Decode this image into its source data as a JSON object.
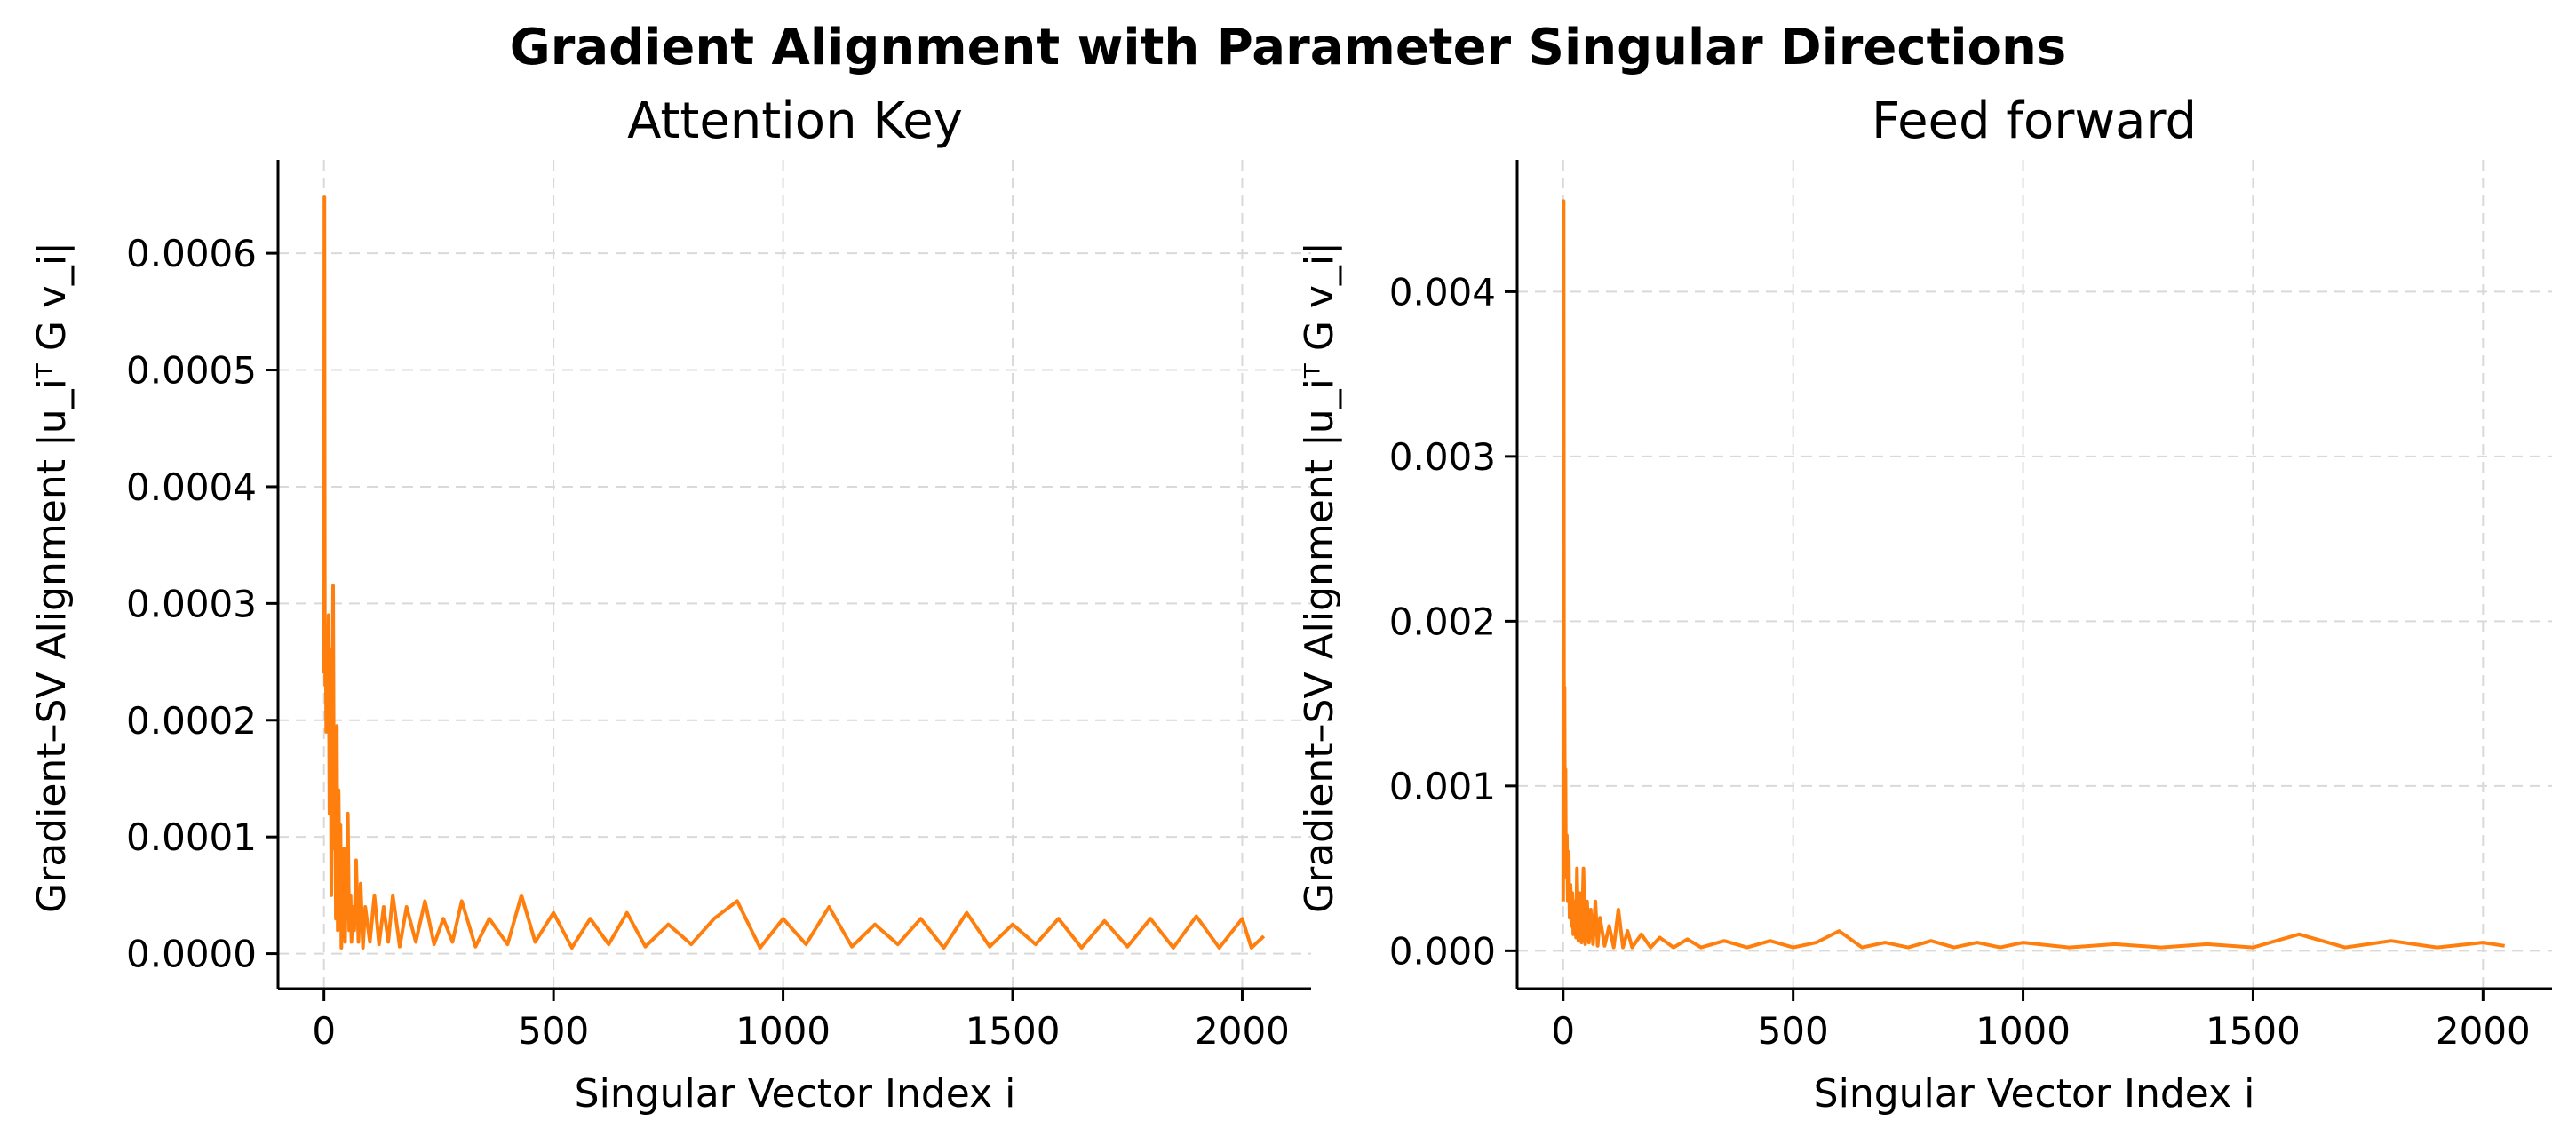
{
  "figure": {
    "title": "Gradient Alignment with Parameter Singular Directions",
    "series_color": "#ff7f0e"
  },
  "chart_data": [
    {
      "type": "line",
      "title": "Attention Key",
      "xlabel": "Singular Vector Index  i",
      "ylabel": "Gradient–SV Alignment  |u_iᵀ G v_i|",
      "xlim": [
        -100,
        2150
      ],
      "ylim": [
        -3e-05,
        0.00068
      ],
      "xticks": [
        0,
        500,
        1000,
        1500,
        2000
      ],
      "xtick_labels": [
        "0",
        "500",
        "1000",
        "1500",
        "2000"
      ],
      "yticks": [
        0,
        0.0001,
        0.0002,
        0.0003,
        0.0004,
        0.0005,
        0.0006
      ],
      "ytick_labels": [
        "0.0000",
        "0.0001",
        "0.0002",
        "0.0003",
        "0.0004",
        "0.0005",
        "0.0006"
      ],
      "grid": true,
      "series": [
        {
          "name": "",
          "x": [
            0,
            1,
            2,
            3,
            4,
            5,
            6,
            8,
            10,
            12,
            14,
            16,
            18,
            20,
            22,
            24,
            26,
            28,
            30,
            32,
            34,
            36,
            38,
            40,
            42,
            44,
            46,
            48,
            50,
            52,
            55,
            58,
            60,
            63,
            66,
            70,
            75,
            80,
            85,
            90,
            100,
            110,
            120,
            130,
            140,
            150,
            165,
            180,
            200,
            220,
            240,
            260,
            280,
            300,
            330,
            360,
            400,
            430,
            460,
            500,
            540,
            580,
            620,
            660,
            700,
            750,
            800,
            850,
            900,
            950,
            1000,
            1050,
            1100,
            1150,
            1200,
            1250,
            1300,
            1350,
            1400,
            1450,
            1500,
            1550,
            1600,
            1650,
            1700,
            1750,
            1800,
            1850,
            1900,
            1950,
            2000,
            2020,
            2047
          ],
          "values": [
            0.00024,
            0.000648,
            0.00028,
            0.00023,
            0.000255,
            0.00019,
            0.00028,
            0.00022,
            0.00029,
            0.00012,
            0.00026,
            5e-05,
            0.0002,
            0.000315,
            9e-05,
            0.00018,
            3e-05,
            0.000195,
            2e-05,
            0.00014,
            6e-05,
            0.00011,
            5e-06,
            7e-05,
            4e-05,
            9e-05,
            1e-05,
            6e-05,
            3e-05,
            0.00012,
            2e-05,
            5e-05,
            1e-05,
            4e-05,
            2e-05,
            8e-05,
            1e-05,
            6e-05,
            5e-06,
            4e-05,
            1e-05,
            5e-05,
            8e-06,
            4e-05,
            1e-05,
            5e-05,
            6e-06,
            4e-05,
            1e-05,
            4.5e-05,
            8e-06,
            3e-05,
            1e-05,
            4.5e-05,
            6e-06,
            3e-05,
            8e-06,
            5e-05,
            1e-05,
            3.5e-05,
            5e-06,
            3e-05,
            8e-06,
            3.5e-05,
            6e-06,
            2.5e-05,
            8e-06,
            3e-05,
            4.5e-05,
            5e-06,
            3e-05,
            8e-06,
            4e-05,
            6e-06,
            2.5e-05,
            8e-06,
            3e-05,
            5e-06,
            3.5e-05,
            6e-06,
            2.5e-05,
            8e-06,
            3e-05,
            5e-06,
            2.8e-05,
            6e-06,
            3e-05,
            5e-06,
            3.2e-05,
            5e-06,
            3e-05,
            5e-06,
            1.5e-05
          ]
        }
      ]
    },
    {
      "type": "line",
      "title": "Feed forward",
      "xlabel": "Singular Vector Index  i",
      "ylabel": "Gradient–SV Alignment  |u_iᵀ G v_i|",
      "xlim": [
        -100,
        2150
      ],
      "ylim": [
        -0.00023,
        0.0048
      ],
      "xticks": [
        0,
        500,
        1000,
        1500,
        2000
      ],
      "xtick_labels": [
        "0",
        "500",
        "1000",
        "1500",
        "2000"
      ],
      "yticks": [
        0,
        0.001,
        0.002,
        0.003,
        0.004
      ],
      "ytick_labels": [
        "0.000",
        "0.001",
        "0.002",
        "0.003",
        "0.004"
      ],
      "grid": true,
      "series": [
        {
          "name": "",
          "x": [
            0,
            1,
            2,
            3,
            4,
            5,
            6,
            8,
            10,
            12,
            14,
            16,
            18,
            20,
            22,
            25,
            28,
            30,
            33,
            36,
            40,
            44,
            48,
            52,
            56,
            60,
            65,
            70,
            75,
            80,
            90,
            100,
            110,
            120,
            130,
            140,
            150,
            170,
            190,
            210,
            240,
            270,
            300,
            350,
            400,
            450,
            500,
            550,
            600,
            650,
            700,
            750,
            800,
            850,
            900,
            950,
            1000,
            1100,
            1200,
            1300,
            1400,
            1500,
            1600,
            1700,
            1800,
            1900,
            2000,
            2047
          ],
          "values": [
            0.0003,
            0.00455,
            0.0008,
            0.0016,
            0.0006,
            0.0011,
            0.00045,
            0.0007,
            0.0003,
            0.0006,
            0.0002,
            0.0004,
            0.00015,
            0.00035,
            0.0001,
            0.0003,
            8e-05,
            0.0005,
            6e-05,
            0.00035,
            5e-05,
            0.0005,
            4e-05,
            0.0003,
            5e-05,
            0.00025,
            4e-05,
            0.0003,
            3e-05,
            0.0002,
            3e-05,
            0.00015,
            2e-05,
            0.00025,
            2e-05,
            0.00012,
            2e-05,
            0.0001,
            2e-05,
            8e-05,
            2e-05,
            7e-05,
            2e-05,
            6e-05,
            2e-05,
            6e-05,
            2e-05,
            5e-05,
            0.00012,
            2e-05,
            5e-05,
            2e-05,
            6e-05,
            2e-05,
            5e-05,
            2e-05,
            5e-05,
            2e-05,
            4e-05,
            2e-05,
            4e-05,
            2e-05,
            0.0001,
            2e-05,
            6e-05,
            2e-05,
            5e-05,
            3e-05
          ]
        }
      ]
    }
  ]
}
